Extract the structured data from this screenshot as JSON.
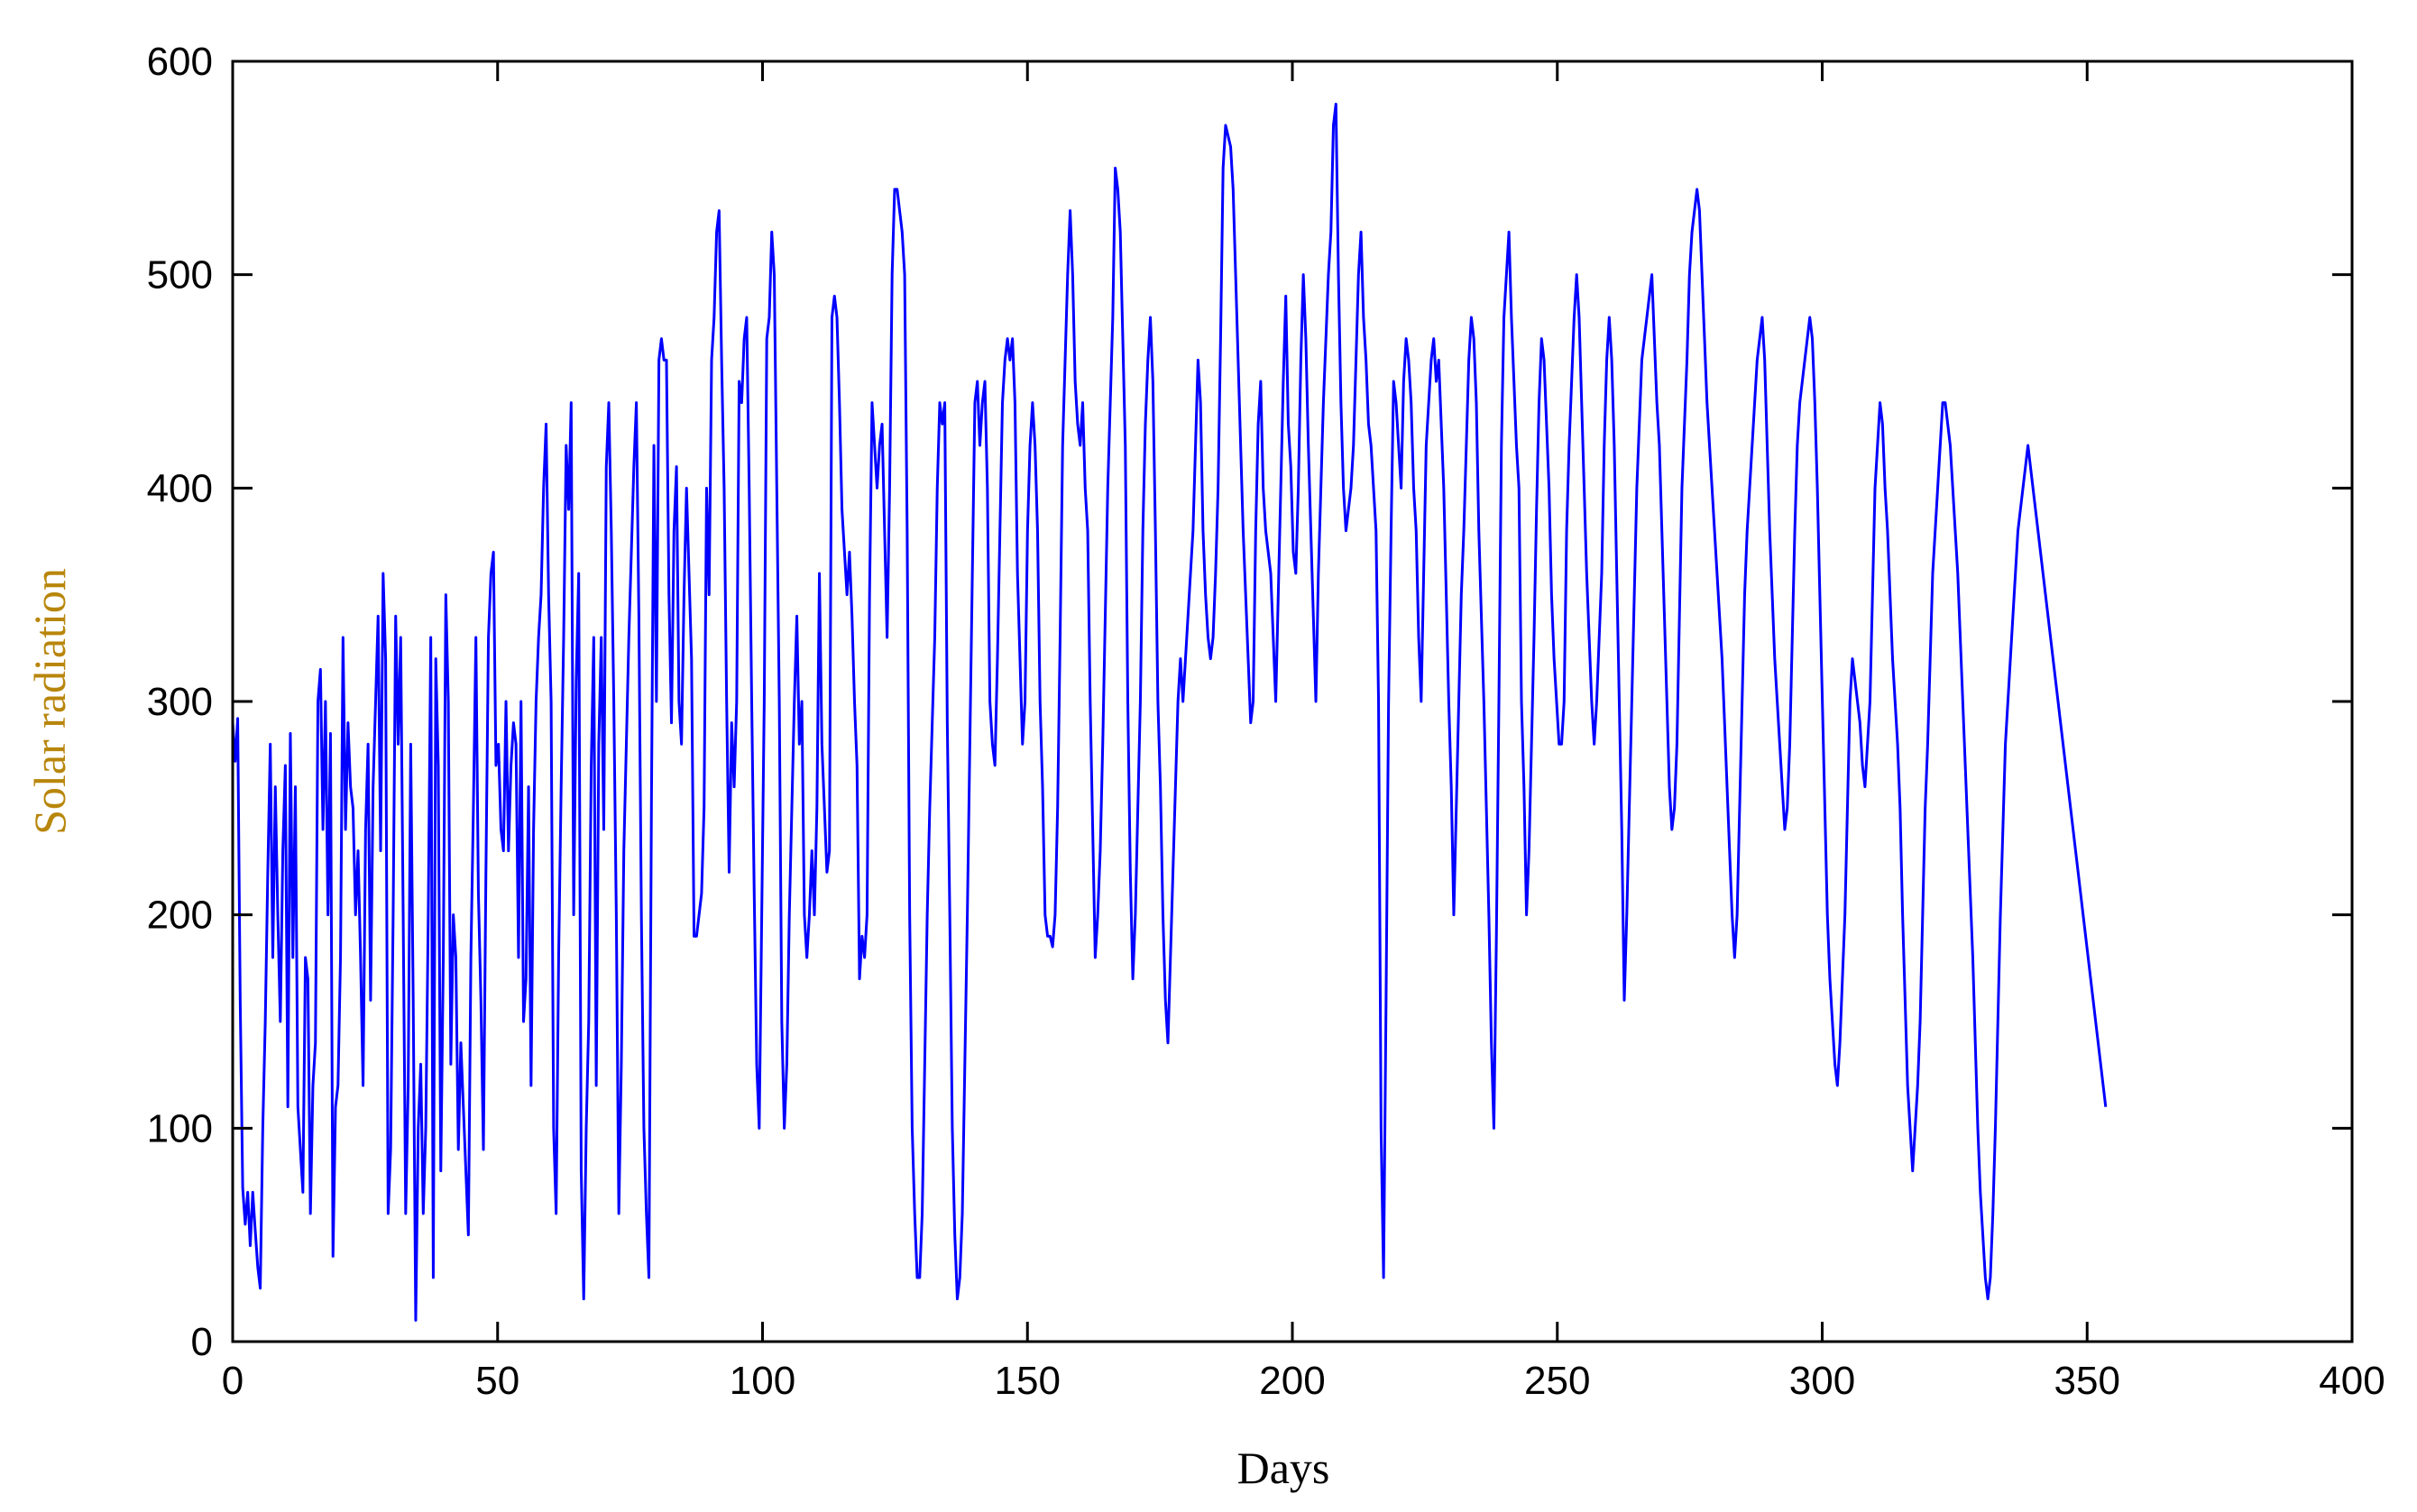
{
  "chart_data": {
    "type": "line",
    "title": "",
    "xlabel": "Days",
    "ylabel": "Solar radiation",
    "xlim": [
      0,
      400
    ],
    "ylim": [
      0,
      600
    ],
    "x_ticks": [
      0,
      50,
      100,
      150,
      200,
      250,
      300,
      350,
      400
    ],
    "y_ticks": [
      0,
      100,
      200,
      300,
      400,
      500,
      600
    ],
    "grid": false,
    "legend": "none",
    "colors": {
      "line": "#0000ff",
      "axis_label": "#b8860b",
      "axis": "#000000"
    },
    "series": [
      {
        "values": [
          290,
          272,
          292,
          160,
          72,
          55,
          70,
          45,
          70,
          52,
          35,
          25,
          100,
          150,
          220,
          280,
          180,
          260,
          200,
          150,
          230,
          270,
          110,
          285,
          180,
          260,
          110,
          90,
          70,
          180,
          170,
          60,
          120,
          140,
          300,
          315,
          240,
          300,
          200,
          285,
          40,
          110,
          120,
          180,
          330,
          240,
          290,
          260,
          250,
          200,
          230,
          180,
          120,
          240,
          280,
          160,
          260,
          300,
          340,
          230,
          360,
          320,
          60,
          90,
          200,
          340,
          280,
          330,
          200,
          60,
          120,
          280,
          160,
          10,
          100,
          130,
          60,
          100,
          200,
          330,
          30,
          320,
          270,
          80,
          180,
          350,
          300,
          130,
          200,
          180,
          90,
          140,
          110,
          80,
          50,
          180,
          250,
          330,
          210,
          160,
          90,
          220,
          330,
          360,
          370,
          270,
          280,
          240,
          230,
          300,
          230,
          270,
          290,
          280,
          180,
          300,
          150,
          170,
          260,
          120,
          240,
          300,
          330,
          350,
          400,
          430,
          350,
          300,
          100,
          60,
          180,
          260,
          330,
          420,
          390,
          440,
          200,
          310,
          360,
          80,
          20,
          100,
          150,
          270,
          330,
          120,
          280,
          330,
          240,
          410,
          440,
          380,
          300,
          200,
          60,
          130,
          230,
          280,
          330,
          370,
          410,
          440,
          340,
          200,
          100,
          60,
          30,
          250,
          420,
          300,
          460,
          470,
          460,
          460,
          350,
          290,
          380,
          410,
          300,
          280,
          350,
          400,
          360,
          320,
          190,
          190,
          200,
          210,
          250,
          400,
          350,
          460,
          480,
          520,
          530,
          460,
          400,
          300,
          220,
          290,
          260,
          300,
          450,
          440,
          470,
          480,
          400,
          300,
          210,
          130,
          100,
          200,
          300,
          470,
          480,
          520,
          500,
          400,
          300,
          150,
          100,
          130,
          200,
          250,
          300,
          340,
          280,
          300,
          200,
          180,
          200,
          230,
          200,
          250,
          360,
          280,
          250,
          220,
          230,
          480,
          490,
          480,
          440,
          390,
          370,
          350,
          370,
          340,
          300,
          270,
          170,
          190,
          180,
          200,
          350,
          440,
          420,
          400,
          420,
          430,
          380,
          330,
          400,
          500,
          540,
          540,
          530,
          520,
          500,
          380,
          200,
          100,
          60,
          30,
          30,
          60,
          130,
          200,
          250,
          290,
          330,
          400,
          440,
          430,
          440,
          290,
          200,
          100,
          50,
          20,
          30,
          60,
          130,
          200,
          280,
          360,
          440,
          450,
          420,
          440,
          450,
          400,
          300,
          280,
          270,
          320,
          380,
          440,
          460,
          470,
          460,
          470,
          440,
          360,
          320,
          280,
          300,
          380,
          420,
          440,
          420,
          380,
          300,
          260,
          200,
          190,
          190,
          185,
          200,
          250,
          330,
          420,
          460,
          500,
          530,
          500,
          450,
          430,
          420,
          440,
          400,
          380,
          300,
          240,
          180,
          200,
          230,
          280,
          340,
          400,
          440,
          480,
          550,
          540,
          520,
          470,
          420,
          300,
          220,
          170,
          200,
          250,
          300,
          380,
          430,
          460,
          480,
          450,
          380,
          300,
          260,
          200,
          160,
          140,
          180,
          220,
          260,
          300,
          320,
          300,
          320,
          340,
          360,
          380,
          420,
          460,
          440,
          380,
          350,
          330,
          320,
          330,
          360,
          400,
          470,
          550,
          570,
          565,
          560,
          540,
          500,
          460,
          420,
          380,
          350,
          320,
          290,
          300,
          380,
          430,
          450,
          400,
          380,
          370,
          360,
          330,
          300,
          350,
          400,
          450,
          490,
          430,
          410,
          370,
          360,
          400,
          460,
          500,
          470,
          420,
          380,
          340,
          300,
          360,
          400,
          440,
          470,
          500,
          520,
          570,
          580,
          500,
          440,
          400,
          380,
          390,
          400,
          420,
          460,
          500,
          520,
          480,
          460,
          430,
          420,
          400,
          380,
          300,
          100,
          30,
          160,
          300,
          380,
          450,
          440,
          420,
          400,
          450,
          470,
          460,
          440,
          400,
          380,
          330,
          300,
          360,
          420,
          440,
          460,
          470,
          450,
          460,
          430,
          400,
          350,
          300,
          260,
          200,
          250,
          300,
          350,
          380,
          420,
          460,
          480,
          470,
          440,
          380,
          340,
          300,
          250,
          200,
          140,
          100,
          190,
          300,
          420,
          480,
          500,
          520,
          480,
          450,
          420,
          400,
          300,
          260,
          200,
          230,
          280,
          330,
          390,
          440,
          470,
          460,
          430,
          400,
          350,
          320,
          300,
          280,
          280,
          300,
          380,
          420,
          450,
          480,
          500,
          480,
          440,
          400,
          360,
          330,
          300,
          280,
          300,
          330,
          360,
          420,
          460,
          480,
          460,
          420,
          360,
          300,
          240,
          160,
          200,
          250,
          300,
          350,
          400,
          430,
          460,
          470,
          480,
          490,
          500,
          470,
          440,
          420,
          380,
          340,
          300,
          260,
          240,
          250,
          280,
          340,
          400,
          430,
          460,
          500,
          520,
          530,
          540,
          530,
          500,
          470,
          440,
          420,
          400,
          380,
          360,
          340,
          320,
          290,
          260,
          230,
          200,
          180,
          200,
          250,
          300,
          350,
          380,
          400,
          420,
          440,
          460,
          470,
          480,
          460,
          420,
          380,
          350,
          320,
          300,
          280,
          260,
          240,
          250,
          280,
          330,
          380,
          420,
          440,
          450,
          460,
          470,
          480,
          470,
          440,
          400,
          350,
          300,
          250,
          200,
          170,
          150,
          130,
          120,
          140,
          170,
          200,
          250,
          300,
          320,
          310,
          300,
          290,
          270,
          260,
          280,
          300,
          350,
          400,
          420,
          440,
          430,
          400,
          380,
          350,
          320,
          300,
          280,
          250,
          200,
          160,
          120,
          100,
          80,
          100,
          120,
          150,
          200,
          250,
          280,
          320,
          360,
          380,
          400,
          420,
          440,
          440,
          430,
          420,
          400,
          380,
          360,
          330,
          300,
          270,
          240,
          210,
          180,
          140,
          100,
          70,
          50,
          30,
          20,
          30,
          60,
          100,
          150,
          200,
          240,
          280,
          300,
          320,
          340,
          360,
          380,
          390,
          400,
          410,
          420,
          410,
          400,
          390,
          380,
          370,
          360,
          350,
          340,
          330,
          320,
          310,
          300,
          290,
          280,
          270,
          260,
          250,
          240,
          230,
          220,
          210,
          200,
          190,
          180,
          170,
          160,
          150,
          140,
          130,
          120,
          110
        ]
      }
    ]
  }
}
